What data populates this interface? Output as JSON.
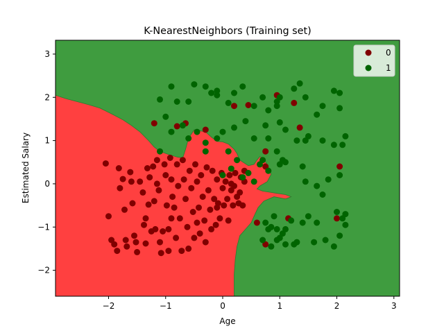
{
  "chart_data": {
    "type": "scatter",
    "title": "K-NearestNeighbors (Training set)",
    "xlabel": "Age",
    "ylabel": "Estimated Salary",
    "xlim": [
      -2.93,
      3.1
    ],
    "ylim": [
      -2.6,
      3.32
    ],
    "xticks": [
      -2,
      -1,
      0,
      1,
      2,
      3
    ],
    "yticks": [
      -2,
      -1,
      0,
      1,
      2,
      3
    ],
    "grid": false,
    "legend_position": "top-right",
    "colors": {
      "region_0": "#ff4040",
      "region_1": "#3f9c3f",
      "class_0": "#800000",
      "class_1": "#006400"
    },
    "decision_boundary": [
      [
        -2.93,
        2.05
      ],
      [
        -2.75,
        1.97
      ],
      [
        -2.55,
        1.9
      ],
      [
        -2.35,
        1.83
      ],
      [
        -2.15,
        1.75
      ],
      [
        -1.95,
        1.62
      ],
      [
        -1.75,
        1.48
      ],
      [
        -1.6,
        1.35
      ],
      [
        -1.45,
        1.2
      ],
      [
        -1.3,
        1.0
      ],
      [
        -1.2,
        0.85
      ],
      [
        -1.1,
        0.75
      ],
      [
        -0.95,
        0.68
      ],
      [
        -0.8,
        0.62
      ],
      [
        -0.7,
        0.6
      ],
      [
        -0.65,
        0.8
      ],
      [
        -0.6,
        1.05
      ],
      [
        -0.5,
        1.25
      ],
      [
        -0.3,
        1.2
      ],
      [
        -0.2,
        1.08
      ],
      [
        -0.1,
        0.98
      ],
      [
        0.0,
        0.97
      ],
      [
        0.1,
        0.92
      ],
      [
        0.2,
        0.8
      ],
      [
        0.25,
        0.7
      ],
      [
        0.3,
        0.55
      ],
      [
        0.45,
        0.42
      ],
      [
        0.55,
        0.45
      ],
      [
        0.6,
        0.55
      ],
      [
        0.65,
        0.63
      ],
      [
        0.72,
        0.58
      ],
      [
        0.8,
        0.4
      ],
      [
        0.85,
        0.22
      ],
      [
        0.78,
        0.05
      ],
      [
        0.65,
        -0.05
      ],
      [
        0.6,
        -0.12
      ],
      [
        0.7,
        -0.17
      ],
      [
        0.85,
        -0.2
      ],
      [
        0.95,
        -0.22
      ],
      [
        1.1,
        -0.25
      ],
      [
        1.2,
        -0.3
      ],
      [
        1.1,
        -0.35
      ],
      [
        0.9,
        -0.3
      ],
      [
        0.72,
        -0.4
      ],
      [
        0.62,
        -0.55
      ],
      [
        0.55,
        -0.75
      ],
      [
        0.5,
        -0.9
      ],
      [
        0.4,
        -1.05
      ],
      [
        0.3,
        -1.2
      ],
      [
        0.25,
        -1.45
      ],
      [
        0.22,
        -1.75
      ],
      [
        0.2,
        -2.1
      ],
      [
        0.2,
        -2.6
      ]
    ],
    "series": [
      {
        "name": "0",
        "points": [
          [
            -2.05,
            0.47
          ],
          [
            -2.0,
            -0.75
          ],
          [
            -1.95,
            -1.3
          ],
          [
            -1.9,
            -1.4
          ],
          [
            -1.85,
            -1.55
          ],
          [
            -1.82,
            0.36
          ],
          [
            -1.8,
            -0.1
          ],
          [
            -1.75,
            0.11
          ],
          [
            -1.72,
            -0.6
          ],
          [
            -1.7,
            -1.3
          ],
          [
            -1.68,
            -1.45
          ],
          [
            -1.62,
            0.27
          ],
          [
            -1.6,
            0.05
          ],
          [
            -1.58,
            -0.45
          ],
          [
            -1.55,
            -1.2
          ],
          [
            -1.52,
            -1.35
          ],
          [
            -1.5,
            -1.58
          ],
          [
            -1.45,
            0.05
          ],
          [
            -1.4,
            -0.2
          ],
          [
            -1.38,
            -0.95
          ],
          [
            -1.35,
            -1.38
          ],
          [
            -1.32,
            0.36
          ],
          [
            -1.3,
            -0.48
          ],
          [
            -1.28,
            0.15
          ],
          [
            -1.25,
            -1.1
          ],
          [
            -1.22,
            0.4
          ],
          [
            -1.2,
            -0.4
          ],
          [
            -1.18,
            -1.05
          ],
          [
            -1.15,
            0.55
          ],
          [
            -1.15,
            0.0
          ],
          [
            -1.12,
            -0.15
          ],
          [
            -1.1,
            -1.35
          ],
          [
            -1.08,
            -1.6
          ],
          [
            -1.05,
            -1.1
          ],
          [
            -1.02,
            0.45
          ],
          [
            -1.0,
            0.2
          ],
          [
            -0.98,
            -0.5
          ],
          [
            -0.95,
            -1.05
          ],
          [
            -0.95,
            -1.55
          ],
          [
            -0.92,
            0.6
          ],
          [
            -0.9,
            0.1
          ],
          [
            -0.88,
            -0.3
          ],
          [
            -0.85,
            -0.55
          ],
          [
            -0.82,
            -1.25
          ],
          [
            -0.8,
            0.45
          ],
          [
            -0.78,
            -0.05
          ],
          [
            -0.75,
            -0.8
          ],
          [
            -0.72,
            -1.55
          ],
          [
            -0.7,
            0.55
          ],
          [
            -0.68,
            0.1
          ],
          [
            -0.65,
            -0.35
          ],
          [
            -0.62,
            -1.0
          ],
          [
            -0.6,
            -1.5
          ],
          [
            -0.58,
            0.3
          ],
          [
            -0.55,
            -0.1
          ],
          [
            -0.52,
            -0.65
          ],
          [
            -0.5,
            -1.25
          ],
          [
            -0.48,
            0.45
          ],
          [
            -0.45,
            0.05
          ],
          [
            -0.42,
            -0.55
          ],
          [
            -0.4,
            -1.15
          ],
          [
            -0.38,
            0.2
          ],
          [
            -0.35,
            -0.3
          ],
          [
            -0.32,
            -0.85
          ],
          [
            -0.3,
            -1.35
          ],
          [
            -0.28,
            0.38
          ],
          [
            -0.25,
            -0.15
          ],
          [
            -0.22,
            -0.6
          ],
          [
            -0.2,
            -1.05
          ],
          [
            -0.18,
            0.3
          ],
          [
            -0.15,
            -0.35
          ],
          [
            -0.12,
            -0.95
          ],
          [
            -0.1,
            0.1
          ],
          [
            -0.08,
            -0.45
          ],
          [
            -0.05,
            -0.8
          ],
          [
            -0.02,
            0.25
          ],
          [
            0.0,
            -0.1
          ],
          [
            0.02,
            -0.5
          ],
          [
            0.05,
            0.05
          ],
          [
            0.08,
            -0.35
          ],
          [
            0.1,
            -0.85
          ],
          [
            0.12,
            0.2
          ],
          [
            0.15,
            -0.15
          ],
          [
            0.18,
            -0.5
          ],
          [
            0.2,
            -0.05
          ],
          [
            0.22,
            0.25
          ],
          [
            0.25,
            -0.3
          ],
          [
            0.28,
            -0.45
          ],
          [
            0.3,
            -0.2
          ],
          [
            0.32,
            0.15
          ],
          [
            0.35,
            -0.5
          ],
          [
            0.38,
            0.05
          ],
          [
            -0.3,
            1.25
          ],
          [
            -0.65,
            1.4
          ],
          [
            -1.2,
            1.4
          ],
          [
            0.2,
            1.8
          ],
          [
            0.45,
            1.82
          ],
          [
            0.95,
            2.05
          ],
          [
            1.25,
            1.87
          ],
          [
            1.35,
            1.3
          ],
          [
            -0.8,
            1.33
          ],
          [
            0.75,
            0.75
          ],
          [
            0.75,
            0.4
          ],
          [
            0.6,
            -0.9
          ],
          [
            0.75,
            -1.4
          ],
          [
            1.15,
            -0.8
          ],
          [
            2.0,
            -0.8
          ],
          [
            2.05,
            0.4
          ],
          [
            0.38,
            0.3
          ],
          [
            0.15,
            0.0
          ],
          [
            -0.45,
            -0.9
          ],
          [
            -0.1,
            -0.55
          ],
          [
            -1.35,
            -0.8
          ],
          [
            -0.9,
            -0.8
          ]
        ]
      },
      {
        "name": "1",
        "points": [
          [
            -1.1,
            1.95
          ],
          [
            -0.9,
            2.25
          ],
          [
            -0.8,
            1.9
          ],
          [
            -0.6,
            1.9
          ],
          [
            -0.5,
            2.3
          ],
          [
            -0.3,
            2.25
          ],
          [
            -0.2,
            2.1
          ],
          [
            -0.1,
            2.15
          ],
          [
            -0.1,
            2.05
          ],
          [
            0.1,
            1.87
          ],
          [
            0.2,
            2.1
          ],
          [
            0.35,
            2.25
          ],
          [
            0.55,
            1.8
          ],
          [
            0.7,
            2.0
          ],
          [
            0.8,
            1.7
          ],
          [
            0.95,
            1.9
          ],
          [
            0.95,
            1.8
          ],
          [
            1.0,
            2.0
          ],
          [
            1.25,
            2.2
          ],
          [
            1.35,
            2.32
          ],
          [
            1.45,
            2.0
          ],
          [
            1.65,
            1.6
          ],
          [
            1.75,
            1.8
          ],
          [
            1.95,
            2.15
          ],
          [
            2.05,
            2.1
          ],
          [
            2.05,
            1.75
          ],
          [
            -1.0,
            1.55
          ],
          [
            -0.9,
            1.2
          ],
          [
            -0.7,
            1.35
          ],
          [
            -0.6,
            1.05
          ],
          [
            -0.45,
            1.2
          ],
          [
            -0.3,
            0.95
          ],
          [
            -0.1,
            1.05
          ],
          [
            0.0,
            1.2
          ],
          [
            0.2,
            1.3
          ],
          [
            0.4,
            1.45
          ],
          [
            0.55,
            1.05
          ],
          [
            0.75,
            1.35
          ],
          [
            0.8,
            1.05
          ],
          [
            1.0,
            1.42
          ],
          [
            1.1,
            1.25
          ],
          [
            1.3,
            1.0
          ],
          [
            1.45,
            1.0
          ],
          [
            1.5,
            1.1
          ],
          [
            1.75,
            1.0
          ],
          [
            1.95,
            0.9
          ],
          [
            2.1,
            0.9
          ],
          [
            2.15,
            1.1
          ],
          [
            -1.1,
            0.75
          ],
          [
            -0.3,
            0.75
          ],
          [
            0.1,
            0.75
          ],
          [
            0.25,
            0.55
          ],
          [
            0.45,
            0.25
          ],
          [
            0.55,
            0.05
          ],
          [
            0.7,
            0.55
          ],
          [
            0.8,
            0.3
          ],
          [
            0.95,
            0.75
          ],
          [
            1.05,
            0.55
          ],
          [
            1.1,
            0.5
          ],
          [
            1.4,
            0.4
          ],
          [
            1.45,
            0.05
          ],
          [
            1.65,
            -0.05
          ],
          [
            1.85,
            0.1
          ],
          [
            2.05,
            0.2
          ],
          [
            0.15,
            0.35
          ],
          [
            0.0,
            0.2
          ],
          [
            0.35,
            0.15
          ],
          [
            0.65,
            0.45
          ],
          [
            1.0,
            0.45
          ],
          [
            1.75,
            -0.25
          ],
          [
            0.75,
            -0.9
          ],
          [
            0.85,
            -1.0
          ],
          [
            0.9,
            -0.75
          ],
          [
            0.95,
            -1.05
          ],
          [
            1.0,
            -1.25
          ],
          [
            1.05,
            -1.15
          ],
          [
            1.1,
            -1.4
          ],
          [
            1.2,
            -0.85
          ],
          [
            1.3,
            -1.35
          ],
          [
            1.4,
            -0.9
          ],
          [
            1.5,
            -0.75
          ],
          [
            1.6,
            -1.35
          ],
          [
            1.65,
            -0.9
          ],
          [
            1.8,
            -1.3
          ],
          [
            1.95,
            -1.45
          ],
          [
            2.0,
            -0.65
          ],
          [
            2.05,
            -1.2
          ],
          [
            2.1,
            -0.8
          ],
          [
            2.15,
            -0.7
          ],
          [
            2.15,
            -0.95
          ],
          [
            0.7,
            -1.3
          ],
          [
            0.8,
            -1.05
          ],
          [
            0.85,
            -1.45
          ],
          [
            0.95,
            -1.3
          ],
          [
            1.1,
            -1.05
          ],
          [
            1.25,
            -1.4
          ]
        ]
      }
    ]
  }
}
